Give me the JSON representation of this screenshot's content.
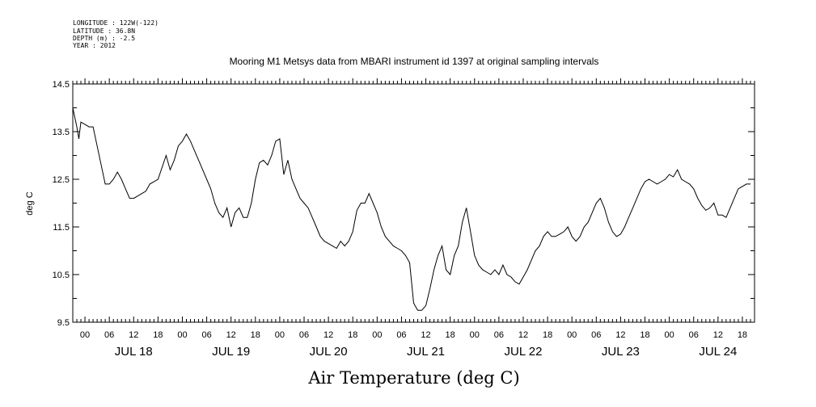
{
  "header": {
    "longitude": "LONGITUDE : 122W(-122)",
    "latitude": "LATITUDE : 36.8N",
    "depth": "DEPTH (m) : -2.5",
    "year": "YEAR : 2012"
  },
  "chart_data": {
    "type": "line",
    "title": "Mooring M1 Metsys data from MBARI instrument id 1397 at original sampling intervals",
    "xlabel": "Air Temperature (deg C)",
    "ylabel": "deg C",
    "ylim": [
      9.5,
      14.5
    ],
    "xlim": [
      -3,
      165
    ],
    "x_unit_note_hidden": false,
    "yticks": [
      "9.5",
      "10.5",
      "11.5",
      "12.5",
      "13.5",
      "14.5"
    ],
    "hour_ticks": [
      "00",
      "06",
      "12",
      "18",
      "00",
      "06",
      "12",
      "18",
      "00",
      "06",
      "12",
      "18",
      "00",
      "06",
      "12",
      "18",
      "00",
      "06",
      "12",
      "18",
      "00",
      "06",
      "12",
      "18",
      "00",
      "06",
      "12",
      "18"
    ],
    "day_labels": [
      "JUL 18",
      "JUL 19",
      "JUL 20",
      "JUL 21",
      "JUL 22",
      "JUL 23",
      "JUL 24"
    ],
    "grid": false,
    "legend": "none",
    "line_color": "#000000",
    "series": [
      {
        "x": [
          -3,
          -2,
          -1.5,
          -1,
          0,
          1,
          2,
          3,
          4,
          5,
          6,
          7,
          8,
          9,
          10,
          11,
          12,
          13,
          14,
          15,
          16,
          18,
          20,
          21,
          22,
          23,
          24,
          25,
          26,
          27,
          28,
          30,
          31,
          32,
          33,
          34,
          35,
          36,
          37,
          38,
          39,
          40,
          41,
          42,
          43,
          44,
          45,
          46,
          47,
          48,
          49,
          50,
          51,
          52,
          53,
          54,
          55,
          56,
          57,
          58,
          59,
          60,
          61,
          62,
          63,
          64,
          65,
          66,
          67,
          68,
          69,
          70,
          71,
          72,
          73,
          74,
          75,
          76,
          77,
          78,
          79,
          80,
          81,
          82,
          83,
          84,
          85,
          86,
          87,
          88,
          89,
          90,
          91,
          92,
          93,
          94,
          95,
          96,
          97,
          98,
          99,
          100,
          101,
          102,
          103,
          104,
          105,
          106,
          107,
          108,
          109,
          110,
          111,
          112,
          113,
          114,
          115,
          116,
          117,
          118,
          119,
          120,
          121,
          122,
          123,
          124,
          125,
          126,
          127,
          128,
          129,
          130,
          131,
          132,
          133,
          134,
          135,
          136,
          137,
          138,
          139,
          140,
          141,
          142,
          143,
          144,
          145,
          146,
          147,
          148,
          149,
          150,
          151,
          152,
          153,
          154,
          155,
          156,
          157,
          158,
          159,
          160,
          161,
          162,
          163,
          164
        ],
        "y": [
          14.0,
          13.6,
          13.35,
          13.7,
          13.65,
          13.6,
          13.6,
          13.2,
          12.8,
          12.4,
          12.4,
          12.5,
          12.65,
          12.5,
          12.3,
          12.1,
          12.1,
          12.15,
          12.2,
          12.25,
          12.4,
          12.5,
          13.0,
          12.7,
          12.9,
          13.2,
          13.3,
          13.45,
          13.3,
          13.1,
          12.9,
          12.5,
          12.3,
          12.0,
          11.8,
          11.7,
          11.9,
          11.5,
          11.8,
          11.9,
          11.7,
          11.7,
          12.0,
          12.5,
          12.85,
          12.9,
          12.8,
          13.0,
          13.3,
          13.35,
          12.6,
          12.9,
          12.5,
          12.3,
          12.1,
          12.0,
          11.9,
          11.7,
          11.5,
          11.3,
          11.2,
          11.15,
          11.1,
          11.05,
          11.2,
          11.1,
          11.2,
          11.4,
          11.85,
          12.0,
          12.0,
          12.2,
          12.0,
          11.8,
          11.5,
          11.3,
          11.2,
          11.1,
          11.05,
          11.0,
          10.9,
          10.75,
          9.9,
          9.75,
          9.75,
          9.85,
          10.2,
          10.6,
          10.9,
          11.1,
          10.6,
          10.5,
          10.9,
          11.1,
          11.6,
          11.9,
          11.4,
          10.9,
          10.7,
          10.6,
          10.55,
          10.5,
          10.6,
          10.5,
          10.7,
          10.5,
          10.45,
          10.35,
          10.3,
          10.45,
          10.6,
          10.8,
          11.0,
          11.1,
          11.3,
          11.4,
          11.3,
          11.3,
          11.35,
          11.4,
          11.5,
          11.3,
          11.2,
          11.3,
          11.5,
          11.6,
          11.8,
          12.0,
          12.1,
          11.9,
          11.6,
          11.4,
          11.3,
          11.35,
          11.5,
          11.7,
          11.9,
          12.1,
          12.3,
          12.45,
          12.5,
          12.45,
          12.4,
          12.45,
          12.5,
          12.6,
          12.55,
          12.7,
          12.5,
          12.45,
          12.4,
          12.3,
          12.1,
          11.95,
          11.85,
          11.9,
          12.0,
          11.75,
          11.75,
          11.7,
          11.9,
          12.1,
          12.3,
          12.35,
          12.4,
          12.4
        ]
      }
    ]
  }
}
